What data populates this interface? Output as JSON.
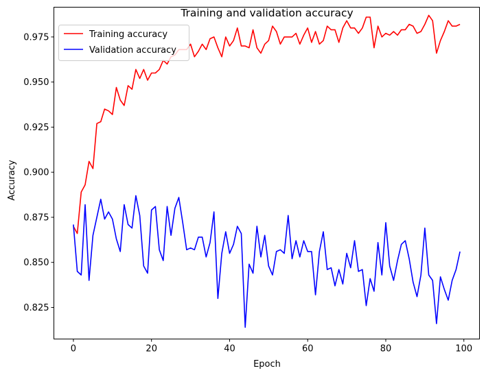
{
  "chart_data": {
    "type": "line",
    "title": "Training and validation accuracy",
    "xlabel": "Epoch",
    "ylabel": "Accuracy",
    "xlim": [
      -5,
      104
    ],
    "ylim": [
      0.8075,
      0.9915
    ],
    "xticks": [
      0,
      20,
      40,
      60,
      80,
      100
    ],
    "yticks": [
      0.825,
      0.85,
      0.875,
      0.9,
      0.925,
      0.95,
      0.975
    ],
    "ytick_labels": [
      "0.825",
      "0.850",
      "0.875",
      "0.900",
      "0.925",
      "0.950",
      "0.975"
    ],
    "grid": false,
    "legend_position": "top-left",
    "series": [
      {
        "name": "Training accuracy",
        "color": "#ff0000",
        "x": [
          0,
          1,
          2,
          3,
          4,
          5,
          6,
          7,
          8,
          9,
          10,
          11,
          12,
          13,
          14,
          15,
          16,
          17,
          18,
          19,
          20,
          21,
          22,
          23,
          24,
          25,
          26,
          27,
          28,
          29,
          30,
          31,
          32,
          33,
          34,
          35,
          36,
          37,
          38,
          39,
          40,
          41,
          42,
          43,
          44,
          45,
          46,
          47,
          48,
          49,
          50,
          51,
          52,
          53,
          54,
          55,
          56,
          57,
          58,
          59,
          60,
          61,
          62,
          63,
          64,
          65,
          66,
          67,
          68,
          69,
          70,
          71,
          72,
          73,
          74,
          75,
          76,
          77,
          78,
          79,
          80,
          81,
          82,
          83,
          84,
          85,
          86,
          87,
          88,
          89,
          90,
          91,
          92,
          93,
          94,
          95,
          96,
          97,
          98,
          99
        ],
        "values": [
          0.87,
          0.866,
          0.889,
          0.893,
          0.906,
          0.902,
          0.927,
          0.928,
          0.935,
          0.934,
          0.932,
          0.947,
          0.94,
          0.937,
          0.948,
          0.946,
          0.957,
          0.952,
          0.957,
          0.951,
          0.955,
          0.955,
          0.957,
          0.962,
          0.96,
          0.964,
          0.965,
          0.968,
          0.968,
          0.968,
          0.971,
          0.964,
          0.967,
          0.971,
          0.968,
          0.974,
          0.975,
          0.969,
          0.964,
          0.975,
          0.97,
          0.973,
          0.98,
          0.97,
          0.97,
          0.969,
          0.979,
          0.969,
          0.966,
          0.971,
          0.973,
          0.981,
          0.978,
          0.971,
          0.975,
          0.975,
          0.975,
          0.977,
          0.971,
          0.976,
          0.98,
          0.972,
          0.978,
          0.971,
          0.973,
          0.981,
          0.979,
          0.979,
          0.972,
          0.98,
          0.984,
          0.98,
          0.98,
          0.977,
          0.98,
          0.986,
          0.986,
          0.969,
          0.981,
          0.975,
          0.977,
          0.976,
          0.978,
          0.976,
          0.979,
          0.979,
          0.982,
          0.981,
          0.977,
          0.978,
          0.982,
          0.987,
          0.984,
          0.966,
          0.973,
          0.978,
          0.984,
          0.981,
          0.981,
          0.982
        ]
      },
      {
        "name": "Validation accuracy",
        "color": "#0000ff",
        "x": [
          0,
          1,
          2,
          3,
          4,
          5,
          6,
          7,
          8,
          9,
          10,
          11,
          12,
          13,
          14,
          15,
          16,
          17,
          18,
          19,
          20,
          21,
          22,
          23,
          24,
          25,
          26,
          27,
          28,
          29,
          30,
          31,
          32,
          33,
          34,
          35,
          36,
          37,
          38,
          39,
          40,
          41,
          42,
          43,
          44,
          45,
          46,
          47,
          48,
          49,
          50,
          51,
          52,
          53,
          54,
          55,
          56,
          57,
          58,
          59,
          60,
          61,
          62,
          63,
          64,
          65,
          66,
          67,
          68,
          69,
          70,
          71,
          72,
          73,
          74,
          75,
          76,
          77,
          78,
          79,
          80,
          81,
          82,
          83,
          84,
          85,
          86,
          87,
          88,
          89,
          90,
          91,
          92,
          93,
          94,
          95,
          96,
          97,
          98,
          99
        ],
        "values": [
          0.871,
          0.845,
          0.843,
          0.882,
          0.84,
          0.865,
          0.875,
          0.885,
          0.874,
          0.878,
          0.874,
          0.863,
          0.856,
          0.882,
          0.871,
          0.869,
          0.887,
          0.876,
          0.848,
          0.844,
          0.879,
          0.881,
          0.857,
          0.851,
          0.881,
          0.865,
          0.88,
          0.886,
          0.872,
          0.857,
          0.858,
          0.857,
          0.864,
          0.864,
          0.853,
          0.861,
          0.878,
          0.83,
          0.855,
          0.867,
          0.855,
          0.86,
          0.87,
          0.866,
          0.814,
          0.849,
          0.844,
          0.87,
          0.853,
          0.865,
          0.848,
          0.843,
          0.856,
          0.857,
          0.855,
          0.876,
          0.852,
          0.862,
          0.853,
          0.862,
          0.856,
          0.856,
          0.832,
          0.856,
          0.867,
          0.846,
          0.847,
          0.837,
          0.846,
          0.838,
          0.855,
          0.847,
          0.862,
          0.845,
          0.846,
          0.826,
          0.841,
          0.834,
          0.861,
          0.843,
          0.872,
          0.848,
          0.84,
          0.851,
          0.86,
          0.862,
          0.852,
          0.839,
          0.831,
          0.843,
          0.869,
          0.843,
          0.84,
          0.816,
          0.842,
          0.835,
          0.829,
          0.84,
          0.846,
          0.856
        ]
      }
    ]
  }
}
